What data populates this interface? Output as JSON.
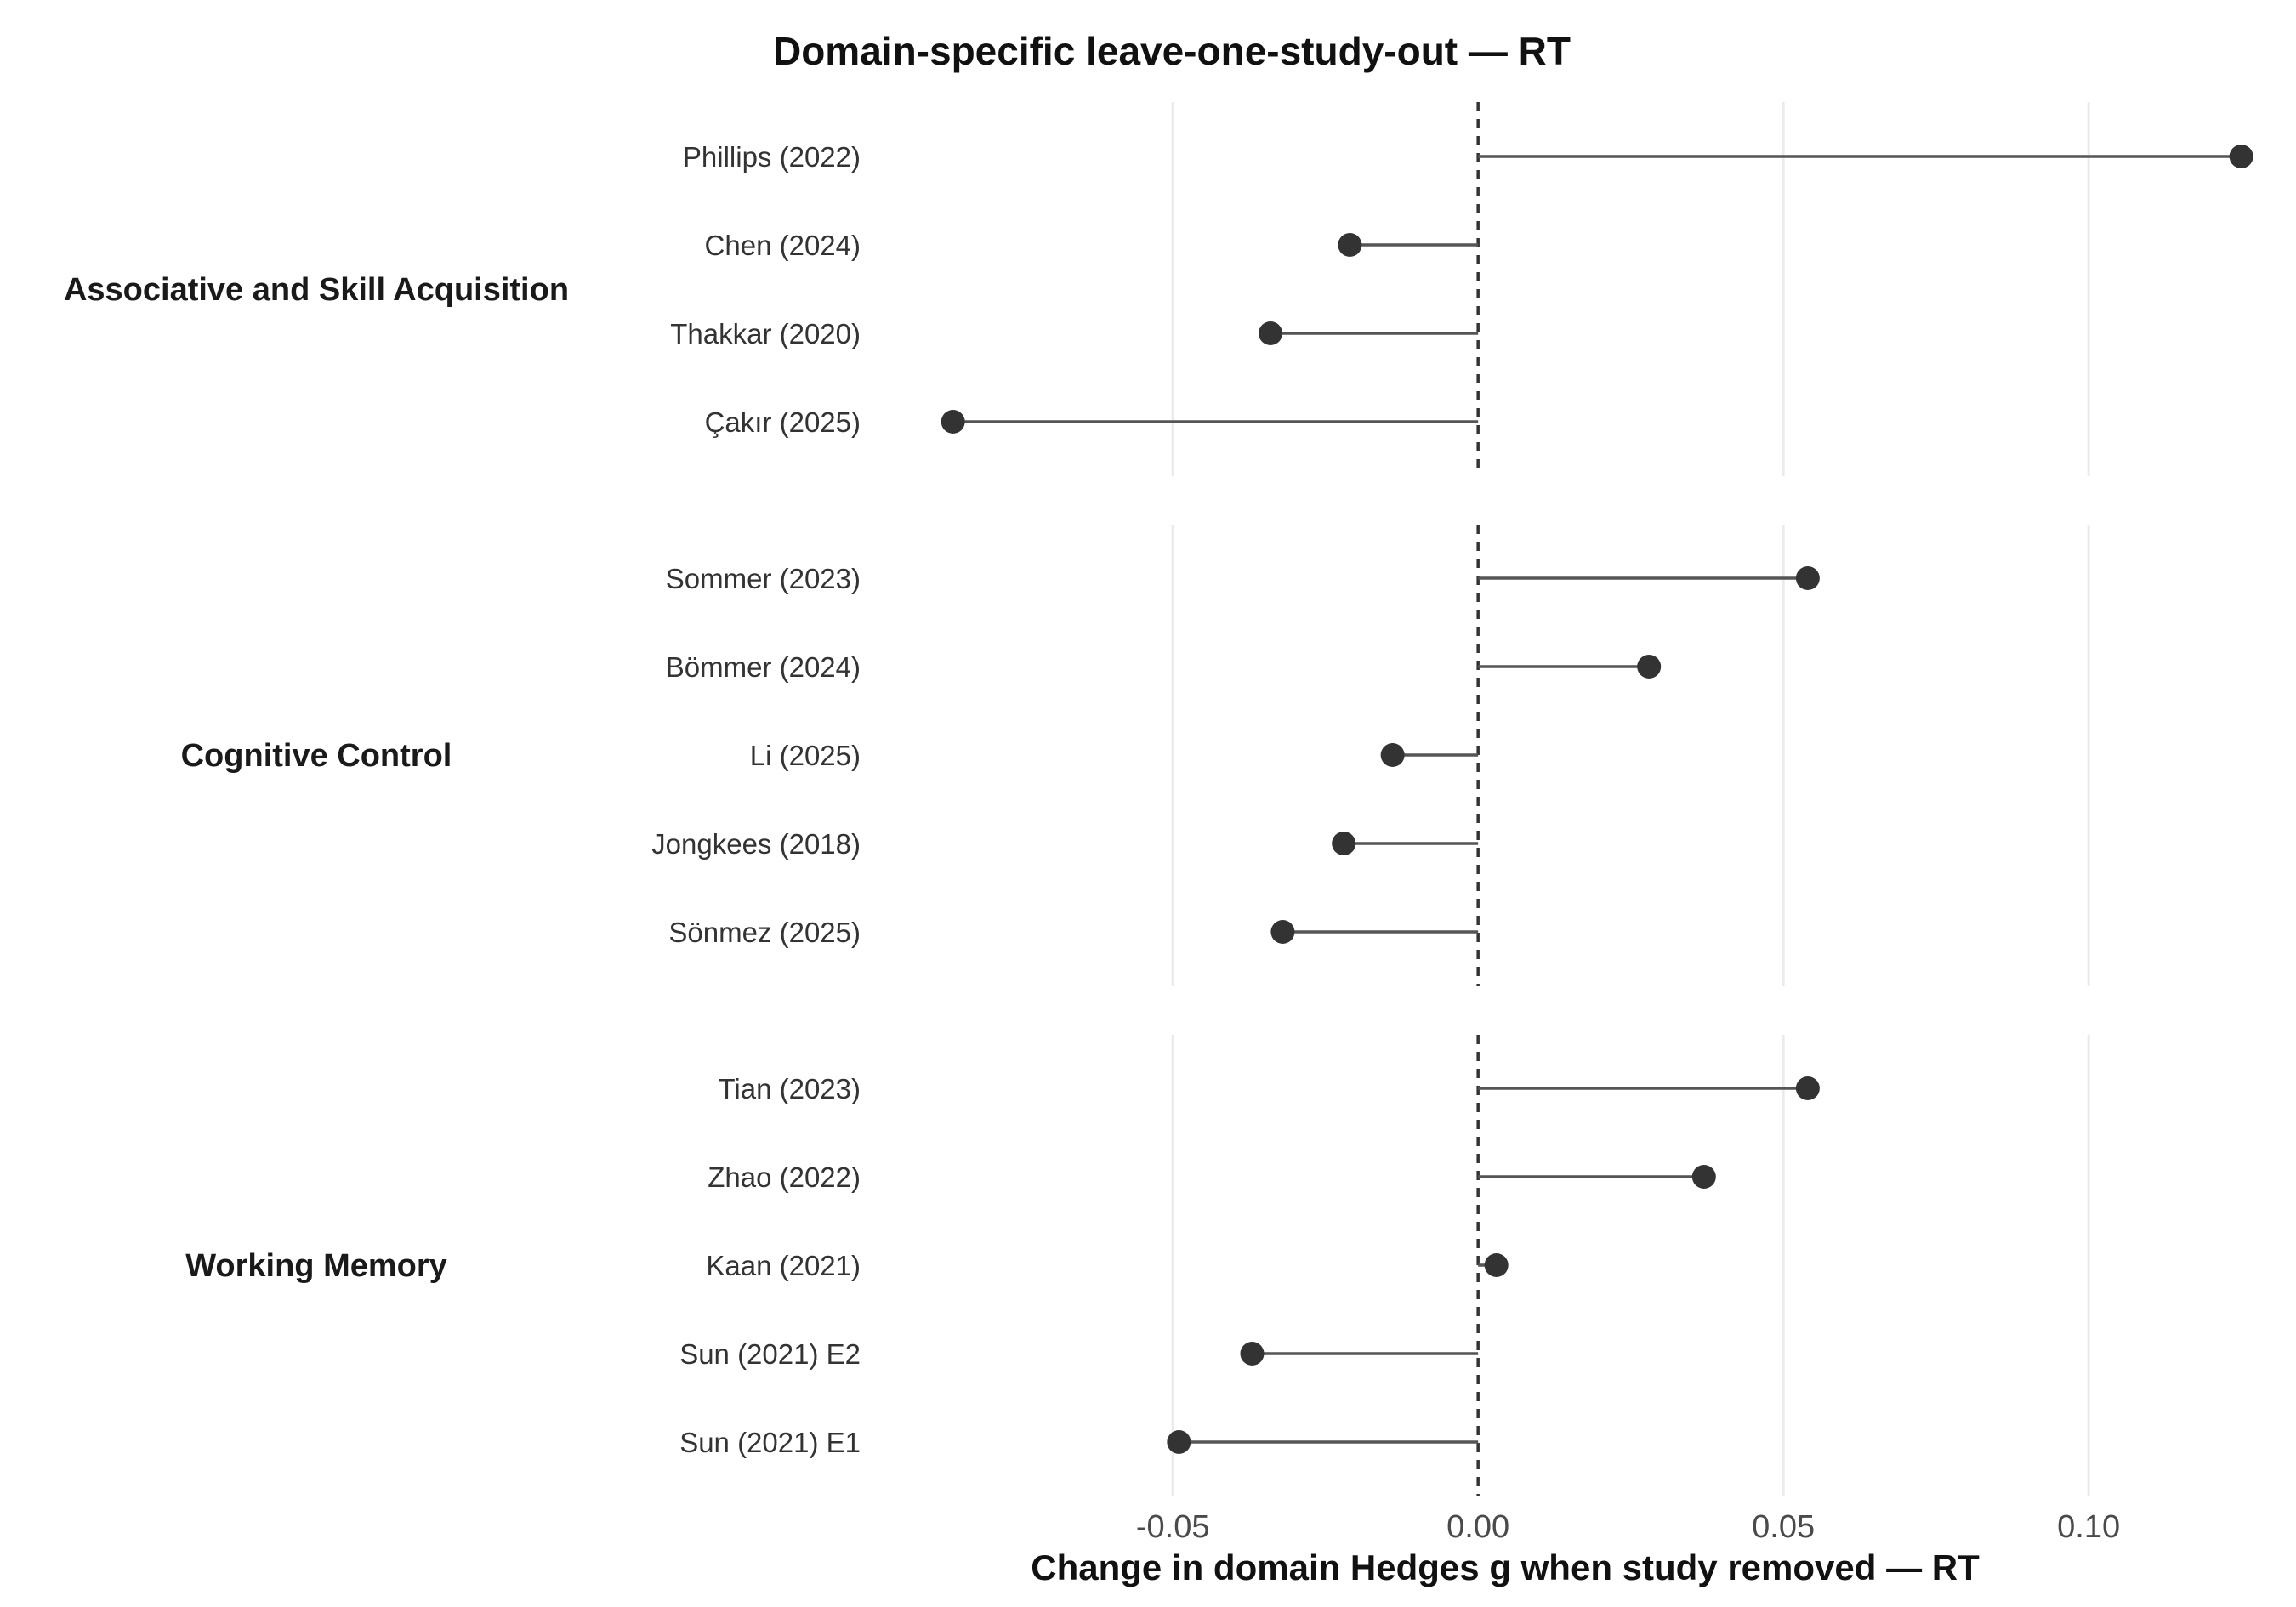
{
  "chart_data": {
    "type": "lollipop",
    "title": "Domain-specific leave-one-study-out — RT",
    "xlabel": "Change in domain Hedges g when study removed — RT",
    "ylabel": "",
    "xlim": [
      -0.101,
      0.127
    ],
    "xticks": [
      -0.05,
      0.0,
      0.05,
      0.1
    ],
    "xtick_labels": [
      "-0.05",
      "0.00",
      "0.05",
      "0.10"
    ],
    "reference_line": 0.0,
    "grid": "vertical major",
    "legend": "none",
    "colors": {
      "point": "#333333",
      "stem": "#555555",
      "grid": "#ebebeb",
      "reference": "#333333"
    },
    "panels": [
      {
        "domain": "Associative and Skill Acquisition",
        "studies": [
          "Phillips (2022)",
          "Chen (2024)",
          "Thakkar (2020)",
          "Çakır (2025)"
        ],
        "values": [
          0.125,
          -0.021,
          -0.034,
          -0.086
        ]
      },
      {
        "domain": "Cognitive Control",
        "studies": [
          "Sommer (2023)",
          "Bömmer (2024)",
          "Li (2025)",
          "Jongkees (2018)",
          "Sönmez (2025)"
        ],
        "values": [
          0.054,
          0.028,
          -0.014,
          -0.022,
          -0.032
        ]
      },
      {
        "domain": "Working Memory",
        "studies": [
          "Tian (2023)",
          "Zhao (2022)",
          "Kaan (2021)",
          "Sun (2021) E2",
          "Sun (2021) E1"
        ],
        "values": [
          0.054,
          0.037,
          0.003,
          -0.037,
          -0.049
        ]
      }
    ]
  }
}
